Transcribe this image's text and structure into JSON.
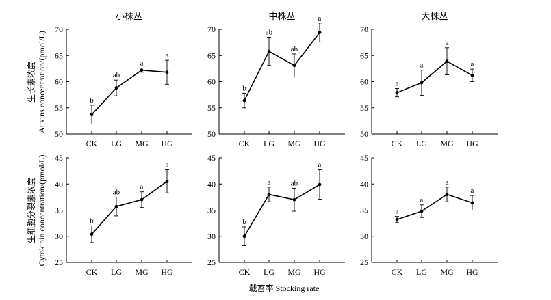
{
  "chart_data": {
    "type": "line",
    "categories": [
      "CK",
      "LG",
      "MG",
      "HG"
    ],
    "x_axis_label": "载畜率 Stocking rate",
    "column_titles": [
      "小株丛",
      "中株丛",
      "大株丛"
    ],
    "rows": [
      {
        "ylabel_cn": "生长素浓度",
        "ylabel_en": "Auxins concentration/(pmol/L)",
        "ylim": [
          50,
          70
        ],
        "ticks": [
          50,
          55,
          60,
          65,
          70
        ],
        "panels": [
          {
            "title": "小株丛",
            "values": [
              53.7,
              58.8,
              62.2,
              61.8
            ],
            "err": [
              1.8,
              1.5,
              0.4,
              2.3
            ],
            "letters": [
              "b",
              "ab",
              "a",
              "a"
            ]
          },
          {
            "title": "中株丛",
            "values": [
              56.4,
              65.8,
              63.1,
              69.4
            ],
            "err": [
              1.4,
              2.7,
              2.2,
              1.8
            ],
            "letters": [
              "b",
              "ab",
              "ab",
              "a"
            ]
          },
          {
            "title": "大株丛",
            "values": [
              57.9,
              59.8,
              63.9,
              61.2
            ],
            "err": [
              0.8,
              2.4,
              2.6,
              1.2
            ],
            "letters": [
              "a",
              "a",
              "a",
              "a"
            ]
          }
        ]
      },
      {
        "ylabel_cn": "生细胞分裂素浓度",
        "ylabel_en": "Cytokinin concentration/(pmol/L)",
        "ylim": [
          25,
          45
        ],
        "ticks": [
          25,
          30,
          35,
          40,
          45
        ],
        "panels": [
          {
            "title": "",
            "values": [
              30.4,
              35.7,
              37.0,
              40.5
            ],
            "err": [
              1.6,
              1.8,
              1.5,
              2.2
            ],
            "letters": [
              "b",
              "ab",
              "a",
              "a"
            ]
          },
          {
            "title": "",
            "values": [
              30.0,
              38.0,
              37.0,
              39.9
            ],
            "err": [
              1.8,
              1.4,
              2.2,
              2.8
            ],
            "letters": [
              "b",
              "a",
              "ab",
              "a"
            ]
          },
          {
            "title": "",
            "values": [
              33.2,
              34.8,
              38.0,
              36.4
            ],
            "err": [
              0.6,
              1.2,
              1.4,
              1.4
            ],
            "letters": [
              "a",
              "a",
              "a",
              "a"
            ]
          }
        ]
      }
    ]
  }
}
